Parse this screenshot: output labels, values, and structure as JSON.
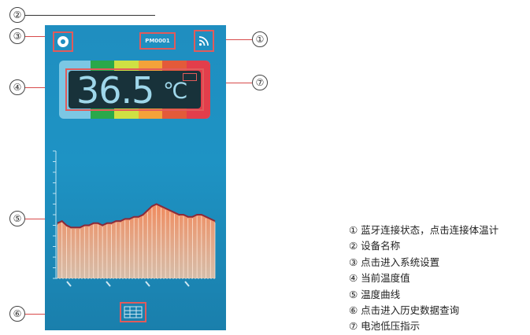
{
  "callouts": [
    "②",
    "③",
    "①",
    "④",
    "⑦",
    "⑤",
    "⑥"
  ],
  "app": {
    "device_name": "PM0001",
    "temperature": "36.5",
    "unit": "℃",
    "settings_icon": "gear-icon",
    "bluetooth_icon": "bluetooth-signal-icon",
    "battery_icon": "battery-low-icon",
    "history_icon": "history-data-icon",
    "band_colors": [
      "#2aa84a",
      "#cfe043",
      "#f3a23a",
      "#e35a3a",
      "#e33e4b"
    ]
  },
  "chart_data": {
    "type": "area",
    "title": "",
    "xlabel": "",
    "ylabel": "",
    "x_ticks": [
      "",
      "",
      "",
      ""
    ],
    "y_ticks": [],
    "values": [
      34.6,
      34.7,
      34.5,
      34.4,
      34.4,
      34.4,
      34.5,
      34.5,
      34.6,
      34.6,
      34.5,
      34.6,
      34.6,
      34.7,
      34.7,
      34.8,
      34.8,
      34.9,
      34.9,
      35.0,
      35.2,
      35.4,
      35.5,
      35.4,
      35.3,
      35.2,
      35.1,
      35.0,
      35.0,
      34.9,
      34.9,
      35.0,
      35.0,
      34.9,
      34.8,
      34.7
    ],
    "ylim": [
      32,
      38
    ]
  },
  "legend": [
    "① 蓝牙连接状态，点击连接体温计",
    "② 设备名称",
    "③ 点击进入系统设置",
    "④ 当前温度值",
    "⑤ 温度曲线",
    "⑥ 点击进入历史数据查询",
    "⑦ 电池低压指示"
  ]
}
